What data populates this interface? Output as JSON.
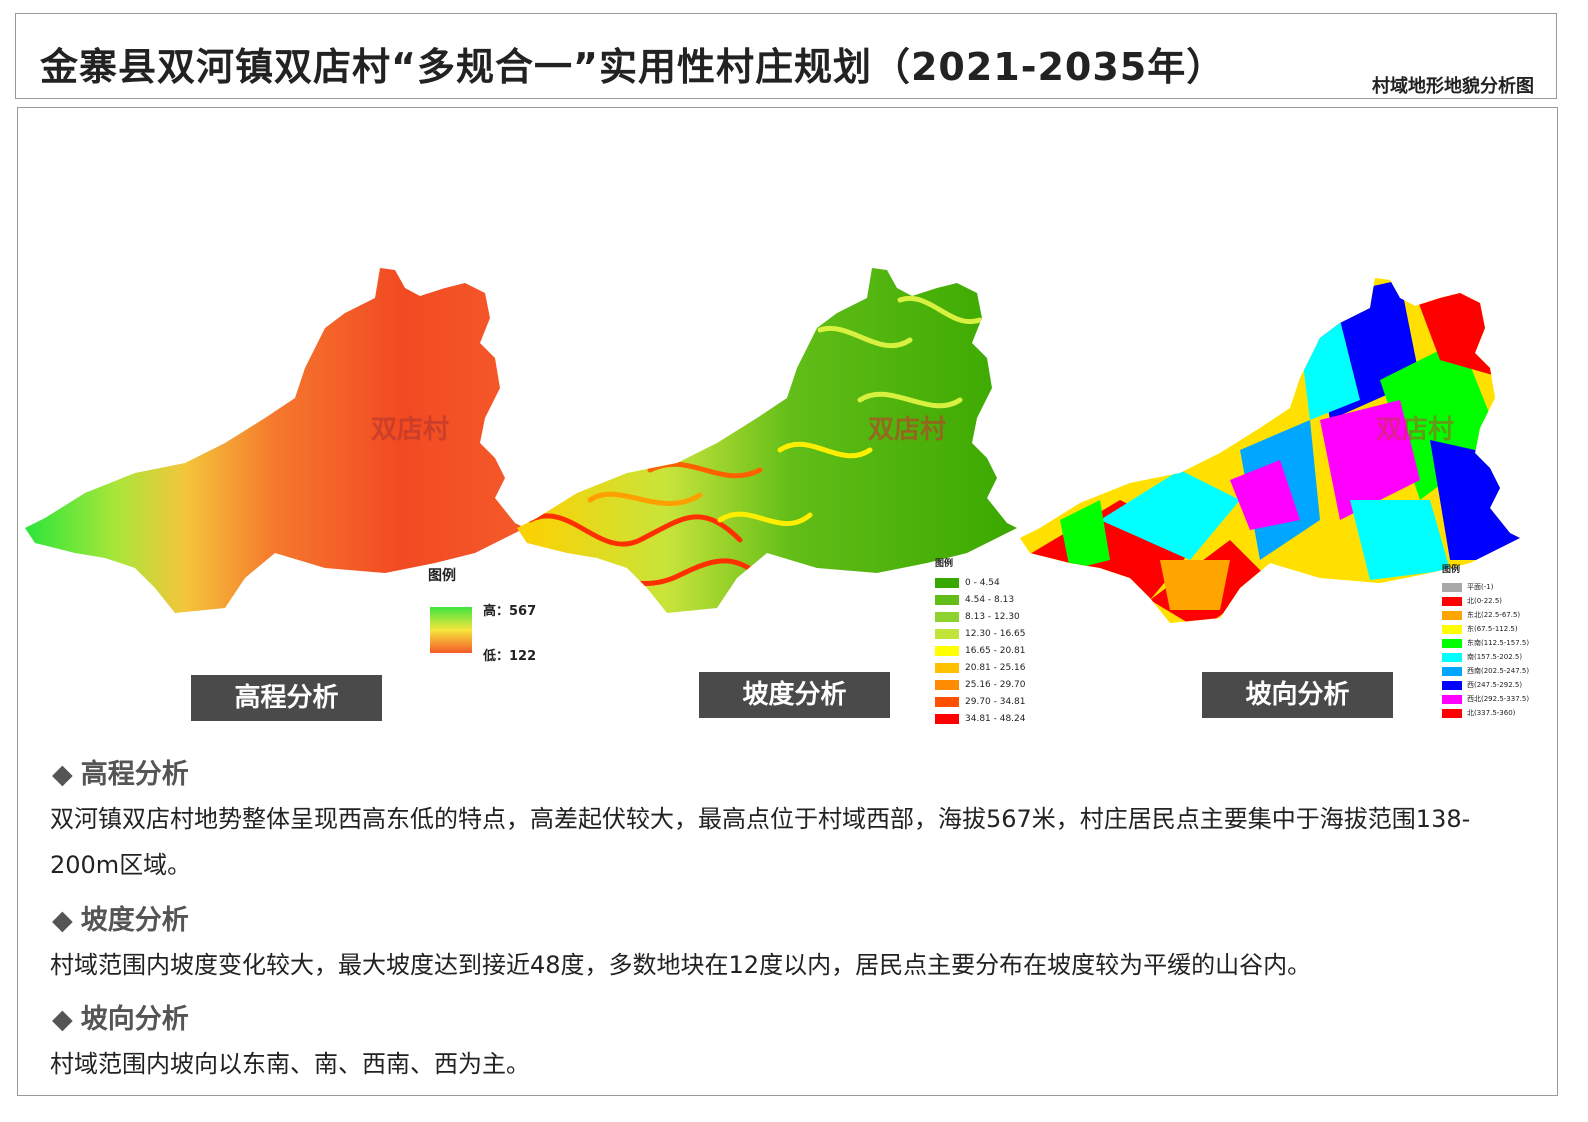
{
  "header": {
    "title": "金寨县双河镇双店村“多规合一”实用性村庄规划（2021-2035年）",
    "subtitle": "村域地形地貌分析图"
  },
  "maps": {
    "village_label": "双店村",
    "elevation": {
      "label": "高程分析",
      "legend_title": "图例",
      "high_label": "高：567",
      "low_label": "低：122"
    },
    "slope": {
      "label": "坡度分析",
      "legend_title": "图例",
      "classes": [
        {
          "range": "0 - 4.54",
          "color": "#38a800"
        },
        {
          "range": "4.54 - 8.13",
          "color": "#62bd18"
        },
        {
          "range": "8.13 - 12.30",
          "color": "#8dd22e"
        },
        {
          "range": "12.30 - 16.65",
          "color": "#c0e43a"
        },
        {
          "range": "16.65 - 20.81",
          "color": "#ffff00"
        },
        {
          "range": "20.81 - 25.16",
          "color": "#ffc000"
        },
        {
          "range": "25.16 - 29.70",
          "color": "#ff8c00"
        },
        {
          "range": "29.70 - 34.81",
          "color": "#ff5000"
        },
        {
          "range": "34.81 - 48.24",
          "color": "#ff0000"
        }
      ]
    },
    "aspect": {
      "label": "坡向分析",
      "legend_title": "图例",
      "classes": [
        {
          "range": "平面(-1)",
          "color": "#a8a8a8"
        },
        {
          "range": "北(0-22.5)",
          "color": "#ff0000"
        },
        {
          "range": "东北(22.5-67.5)",
          "color": "#ffa500"
        },
        {
          "range": "东(67.5-112.5)",
          "color": "#ffff00"
        },
        {
          "range": "东南(112.5-157.5)",
          "color": "#00ff00"
        },
        {
          "range": "南(157.5-202.5)",
          "color": "#00ffff"
        },
        {
          "range": "西南(202.5-247.5)",
          "color": "#00a6ff"
        },
        {
          "range": "西(247.5-292.5)",
          "color": "#0000ff"
        },
        {
          "range": "西北(292.5-337.5)",
          "color": "#ff00ff"
        },
        {
          "range": "北(337.5-360)",
          "color": "#ff0000"
        }
      ]
    }
  },
  "sections": [
    {
      "heading": "高程分析",
      "body": "双河镇双店村地势整体呈现西高东低的特点，高差起伏较大，最高点位于村域西部，海拔567米，村庄居民点主要集中于海拔范围138-200m区域。"
    },
    {
      "heading": "坡度分析",
      "body": "村域范围内坡度变化较大，最大坡度达到接近48度，多数地块在12度以内，居民点主要分布在坡度较为平缓的山谷内。"
    },
    {
      "heading": "坡向分析",
      "body": "村域范围内坡向以东南、南、西南、西为主。"
    }
  ],
  "symbols": {
    "bullet": "◆"
  }
}
